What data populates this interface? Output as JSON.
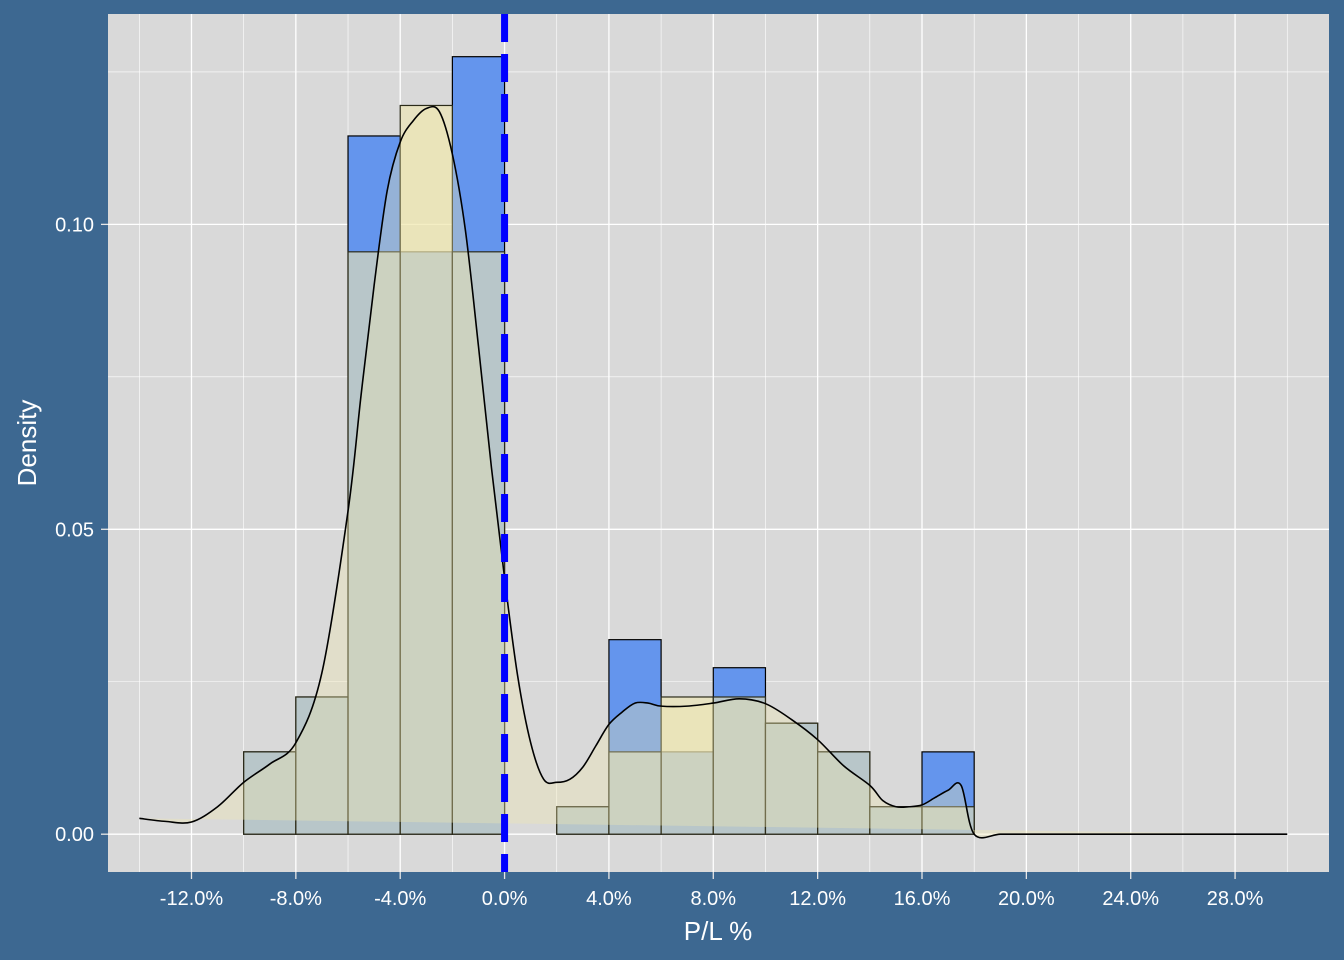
{
  "chart_data": {
    "type": "bar",
    "title": "",
    "xlabel": "P/L %",
    "ylabel": "Density",
    "xlim": [
      -15.2,
      31.6
    ],
    "ylim": [
      -0.0062,
      0.1345
    ],
    "x_ticks": [
      -12,
      -8,
      -4,
      0,
      4,
      8,
      12,
      16,
      20,
      24,
      28
    ],
    "x_tick_labels": [
      "-12.0%",
      "-8.0%",
      "-4.0%",
      "0.0%",
      "4.0%",
      "8.0%",
      "12.0%",
      "16.0%",
      "20.0%",
      "24.0%",
      "28.0%"
    ],
    "y_ticks": [
      0,
      0.05,
      0.1
    ],
    "y_tick_labels": [
      "0.00",
      "0.05",
      "0.10"
    ],
    "grid": true,
    "legend": "none",
    "colors": {
      "background": "#3d6891",
      "panel": "#d9d9d9",
      "grid": "#ffffff",
      "histogram_a": "#6495ed",
      "histogram_b": "#f0e8b0",
      "overlap": "#93b0c3",
      "vline": "#0000ff",
      "curve": "#000000"
    },
    "vline_x": 0,
    "histogram_a": {
      "bin_width": 2,
      "bins": [
        {
          "x0": -10,
          "x1": -8,
          "density": 0.0135
        },
        {
          "x0": -8,
          "x1": -6,
          "density": 0.0225
        },
        {
          "x0": -6,
          "x1": -4,
          "density": 0.1145
        },
        {
          "x0": -4,
          "x1": -2,
          "density": 0.0955
        },
        {
          "x0": -2,
          "x1": 0,
          "density": 0.1275
        },
        {
          "x0": 2,
          "x1": 4,
          "density": 0.0045
        },
        {
          "x0": 4,
          "x1": 6,
          "density": 0.0319
        },
        {
          "x0": 6,
          "x1": 8,
          "density": 0.0135
        },
        {
          "x0": 8,
          "x1": 10,
          "density": 0.0273
        },
        {
          "x0": 10,
          "x1": 12,
          "density": 0.0182
        },
        {
          "x0": 12,
          "x1": 14,
          "density": 0.0135
        },
        {
          "x0": 14,
          "x1": 16,
          "density": 0.0045
        },
        {
          "x0": 16,
          "x1": 18,
          "density": 0.0135
        }
      ]
    },
    "histogram_b": {
      "bin_width": 2,
      "bins": [
        {
          "x0": -12,
          "x1": -10,
          "density": 0.0
        },
        {
          "x0": -10,
          "x1": -8,
          "density": 0.0135
        },
        {
          "x0": -8,
          "x1": -6,
          "density": 0.0225
        },
        {
          "x0": -6,
          "x1": -4,
          "density": 0.0955
        },
        {
          "x0": -4,
          "x1": -2,
          "density": 0.1195
        },
        {
          "x0": -2,
          "x1": 0,
          "density": 0.0955
        },
        {
          "x0": 0,
          "x1": 2,
          "density": 0.0
        },
        {
          "x0": 2,
          "x1": 4,
          "density": 0.0045
        },
        {
          "x0": 4,
          "x1": 6,
          "density": 0.0135
        },
        {
          "x0": 6,
          "x1": 8,
          "density": 0.0225
        },
        {
          "x0": 8,
          "x1": 10,
          "density": 0.0225
        },
        {
          "x0": 10,
          "x1": 12,
          "density": 0.0182
        },
        {
          "x0": 12,
          "x1": 14,
          "density": 0.0135
        },
        {
          "x0": 14,
          "x1": 16,
          "density": 0.0045
        },
        {
          "x0": 16,
          "x1": 18,
          "density": 0.0045
        },
        {
          "x0": 18,
          "x1": 30,
          "density": 0.0
        }
      ]
    },
    "density_curve": {
      "x": [
        -14,
        -13,
        -12,
        -11,
        -10,
        -9,
        -8,
        -7,
        -6,
        -5.5,
        -5,
        -4.5,
        -4,
        -3.5,
        -3,
        -2.5,
        -2,
        -1.5,
        -1,
        -0.5,
        0,
        0.5,
        1,
        1.5,
        2,
        2.5,
        3,
        3.5,
        4,
        4.5,
        5,
        5.5,
        6,
        7,
        8,
        9,
        10,
        11,
        12,
        13,
        14,
        14.5,
        15,
        15.5,
        16,
        16.5,
        17,
        17.5,
        18,
        19,
        20,
        22,
        24,
        26,
        28,
        30
      ],
      "y": [
        0.0026,
        0.0021,
        0.002,
        0.0045,
        0.0085,
        0.0115,
        0.015,
        0.0265,
        0.053,
        0.072,
        0.09,
        0.1055,
        0.1135,
        0.117,
        0.119,
        0.1185,
        0.1115,
        0.099,
        0.08,
        0.06,
        0.042,
        0.026,
        0.015,
        0.009,
        0.0085,
        0.009,
        0.011,
        0.0145,
        0.018,
        0.02,
        0.0215,
        0.0215,
        0.021,
        0.021,
        0.0215,
        0.0222,
        0.0214,
        0.0188,
        0.0155,
        0.0112,
        0.008,
        0.0055,
        0.0045,
        0.0045,
        0.0048,
        0.006,
        0.0072,
        0.008,
        0.0,
        0.0,
        0.0,
        0.0,
        0.0,
        0.0,
        0.0,
        0.0
      ]
    }
  }
}
